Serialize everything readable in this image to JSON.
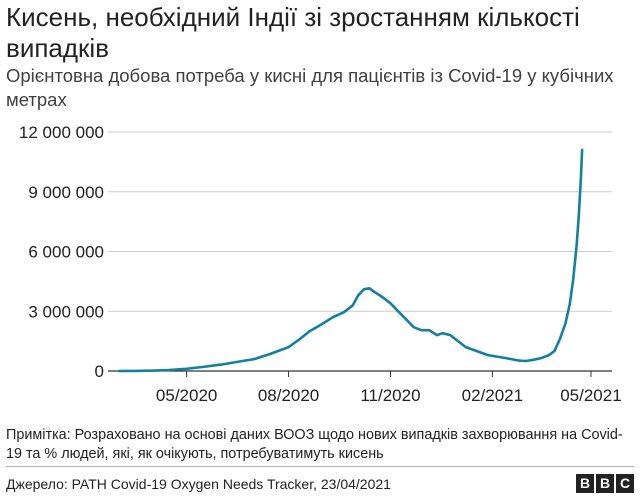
{
  "header": {
    "title": "Кисень, необхідний Індії зі зростанням кількості випадків",
    "subtitle": "Орієнтовна добова потреба у кисні для пацієнтів із Covid-19 у кубічних метрах"
  },
  "chart_data": {
    "type": "line",
    "title": "Кисень, необхідний Індії зі зростанням кількості випадків",
    "subtitle": "Орієнтовна добова потреба у кисні для пацієнтів із Covid-19 у кубічних метрах",
    "xlabel": "",
    "ylabel": "",
    "x_start": "2020-03-01",
    "x_end": "2021-04-23",
    "xlim": [
      "2020-02-20",
      "2021-05-20"
    ],
    "ylim": [
      0,
      12000000
    ],
    "yticks": [
      0,
      3000000,
      6000000,
      9000000,
      12000000
    ],
    "ytick_labels": [
      "0",
      "3 000 000",
      "6 000 000",
      "9 000 000",
      "12 000 000"
    ],
    "xticks": [
      "2020-05-01",
      "2020-08-01",
      "2020-11-01",
      "2021-02-01",
      "2021-05-01"
    ],
    "xtick_labels": [
      "05/2020",
      "08/2020",
      "11/2020",
      "02/2021",
      "05/2021"
    ],
    "grid": "horizontal",
    "color": "#1380a1",
    "series": [
      {
        "points": [
          [
            "2020-03-01",
            0
          ],
          [
            "2020-03-15",
            5000
          ],
          [
            "2020-04-01",
            20000
          ],
          [
            "2020-04-15",
            50000
          ],
          [
            "2020-05-01",
            110000
          ],
          [
            "2020-05-15",
            200000
          ],
          [
            "2020-06-01",
            320000
          ],
          [
            "2020-06-15",
            450000
          ],
          [
            "2020-07-01",
            600000
          ],
          [
            "2020-07-15",
            850000
          ],
          [
            "2020-08-01",
            1200000
          ],
          [
            "2020-08-10",
            1550000
          ],
          [
            "2020-08-20",
            2000000
          ],
          [
            "2020-08-31",
            2350000
          ],
          [
            "2020-09-10",
            2700000
          ],
          [
            "2020-09-20",
            2950000
          ],
          [
            "2020-09-28",
            3300000
          ],
          [
            "2020-10-03",
            3800000
          ],
          [
            "2020-10-08",
            4100000
          ],
          [
            "2020-10-13",
            4150000
          ],
          [
            "2020-10-18",
            3950000
          ],
          [
            "2020-10-25",
            3700000
          ],
          [
            "2020-11-01",
            3400000
          ],
          [
            "2020-11-08",
            3000000
          ],
          [
            "2020-11-15",
            2600000
          ],
          [
            "2020-11-22",
            2200000
          ],
          [
            "2020-11-29",
            2050000
          ],
          [
            "2020-12-06",
            2050000
          ],
          [
            "2020-12-13",
            1800000
          ],
          [
            "2020-12-18",
            1900000
          ],
          [
            "2020-12-25",
            1800000
          ],
          [
            "2021-01-01",
            1500000
          ],
          [
            "2021-01-08",
            1200000
          ],
          [
            "2021-01-18",
            1000000
          ],
          [
            "2021-01-28",
            800000
          ],
          [
            "2021-02-08",
            700000
          ],
          [
            "2021-02-18",
            600000
          ],
          [
            "2021-02-25",
            520000
          ],
          [
            "2021-03-03",
            500000
          ],
          [
            "2021-03-10",
            560000
          ],
          [
            "2021-03-17",
            650000
          ],
          [
            "2021-03-24",
            800000
          ],
          [
            "2021-03-29",
            1000000
          ],
          [
            "2021-04-03",
            1600000
          ],
          [
            "2021-04-08",
            2400000
          ],
          [
            "2021-04-12",
            3400000
          ],
          [
            "2021-04-15",
            4600000
          ],
          [
            "2021-04-18",
            6300000
          ],
          [
            "2021-04-20",
            7800000
          ],
          [
            "2021-04-22",
            9800000
          ],
          [
            "2021-04-23",
            11100000
          ]
        ]
      }
    ]
  },
  "footer": {
    "note": "Примітка: Розраховано на основі даних ВООЗ щодо нових випадків захворювання на Covid-19 та % людей, які, як очікують, потребуватимуть кисень",
    "source": "Джерело: PATH Covid-19 Oxygen Needs Tracker, 23/04/2021",
    "logo_letters": [
      "B",
      "B",
      "C"
    ]
  }
}
